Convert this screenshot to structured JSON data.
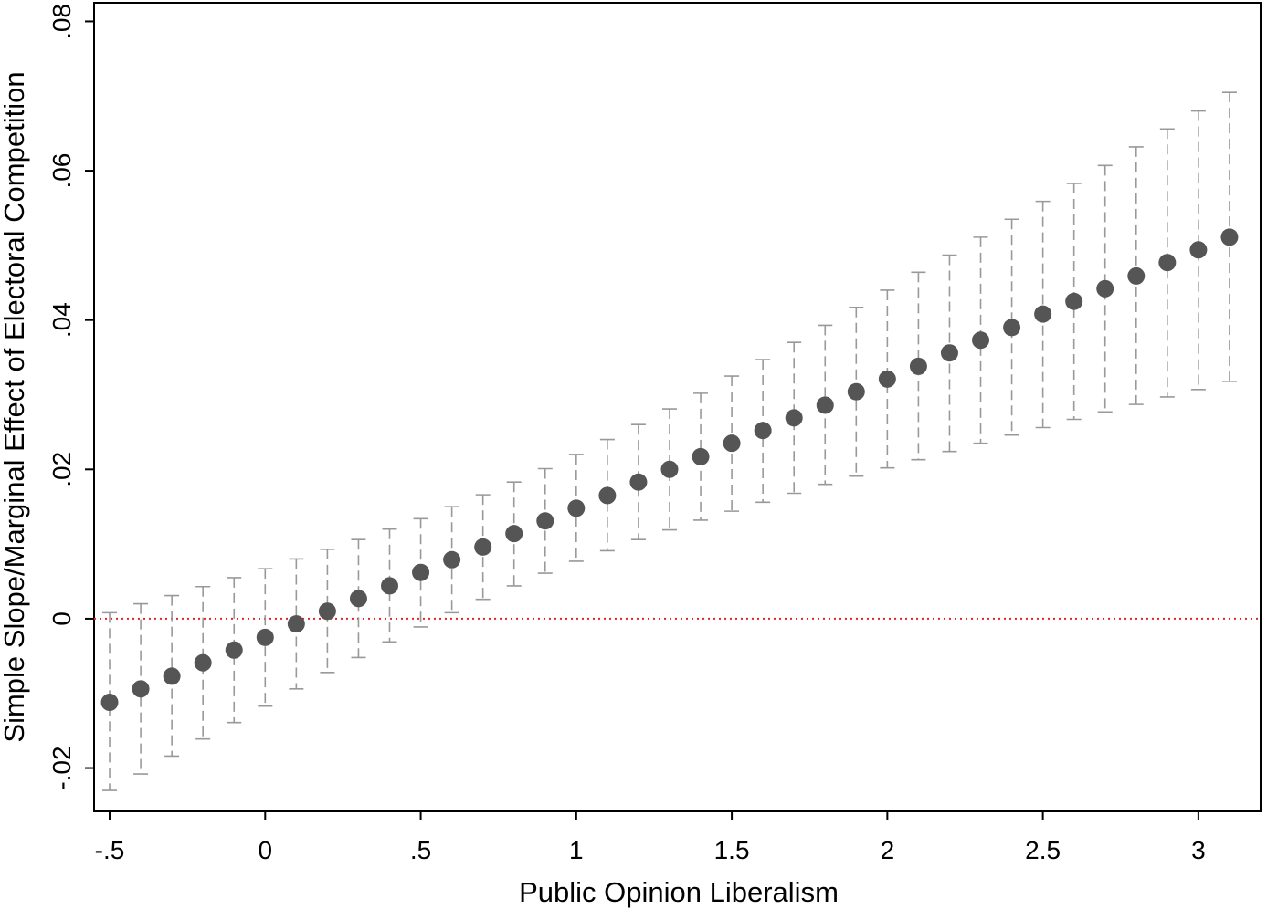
{
  "chart_data": {
    "type": "scatter",
    "title": "",
    "xlabel": "Public Opinion Liberalism",
    "ylabel": "Simple Slope/Marginal Effect of Electoral Competition",
    "xlim": [
      -0.55,
      3.2
    ],
    "ylim": [
      -0.0258,
      0.0825
    ],
    "x_ticks": [
      -0.5,
      0,
      0.5,
      1,
      1.5,
      2,
      2.5,
      3
    ],
    "x_tick_labels": [
      "-.5",
      "0",
      ".5",
      "1",
      "1.5",
      "2",
      "2.5",
      "3"
    ],
    "y_ticks": [
      -0.02,
      0,
      0.02,
      0.04,
      0.06,
      0.08
    ],
    "y_tick_labels": [
      "-.02",
      "0",
      ".02",
      ".04",
      ".06",
      ".08"
    ],
    "reference_line": {
      "y": 0,
      "style": "dotted",
      "color": "#e8212f"
    },
    "colors": {
      "points": "#555555",
      "error_bars": "#999999"
    },
    "grid": false,
    "series": [
      {
        "x": [
          -0.5,
          -0.4,
          -0.3,
          -0.2,
          -0.1,
          0,
          0.1,
          0.2,
          0.3,
          0.4,
          0.5,
          0.6,
          0.7,
          0.8,
          0.9,
          1,
          1.1,
          1.2,
          1.3,
          1.4,
          1.5,
          1.6,
          1.7,
          1.8,
          1.9,
          2,
          2.1,
          2.2,
          2.3,
          2.4,
          2.5,
          2.6,
          2.7,
          2.8,
          2.9,
          3,
          3.1
        ],
        "y": [
          -0.0112,
          -0.0094,
          -0.0077,
          -0.0059,
          -0.0042,
          -0.0025,
          -0.0007,
          0.001,
          0.0027,
          0.0044,
          0.0062,
          0.0079,
          0.0096,
          0.0114,
          0.0131,
          0.0148,
          0.0165,
          0.0183,
          0.02,
          0.0217,
          0.0235,
          0.0252,
          0.0269,
          0.0286,
          0.0304,
          0.0321,
          0.0338,
          0.0356,
          0.0373,
          0.039,
          0.0408,
          0.0425,
          0.0442,
          0.0459,
          0.0477,
          0.0494,
          0.0511
        ],
        "lower": [
          -0.023,
          -0.0208,
          -0.0184,
          -0.0161,
          -0.0139,
          -0.0117,
          -0.0094,
          -0.0072,
          -0.0052,
          -0.0031,
          -0.0011,
          0.0008,
          0.0026,
          0.0044,
          0.0061,
          0.0077,
          0.0091,
          0.0106,
          0.0119,
          0.0132,
          0.0144,
          0.0156,
          0.0168,
          0.018,
          0.0191,
          0.0202,
          0.0213,
          0.0224,
          0.0235,
          0.0246,
          0.0256,
          0.0267,
          0.0277,
          0.0287,
          0.0297,
          0.0307,
          0.0318
        ],
        "upper": [
          0.0008,
          0.002,
          0.0031,
          0.0043,
          0.0055,
          0.0067,
          0.008,
          0.0093,
          0.0106,
          0.012,
          0.0134,
          0.015,
          0.0166,
          0.0183,
          0.0201,
          0.022,
          0.024,
          0.026,
          0.0281,
          0.0302,
          0.0325,
          0.0347,
          0.037,
          0.0393,
          0.0417,
          0.044,
          0.0464,
          0.0487,
          0.0511,
          0.0535,
          0.0559,
          0.0583,
          0.0607,
          0.0632,
          0.0656,
          0.068,
          0.0705
        ]
      }
    ]
  }
}
